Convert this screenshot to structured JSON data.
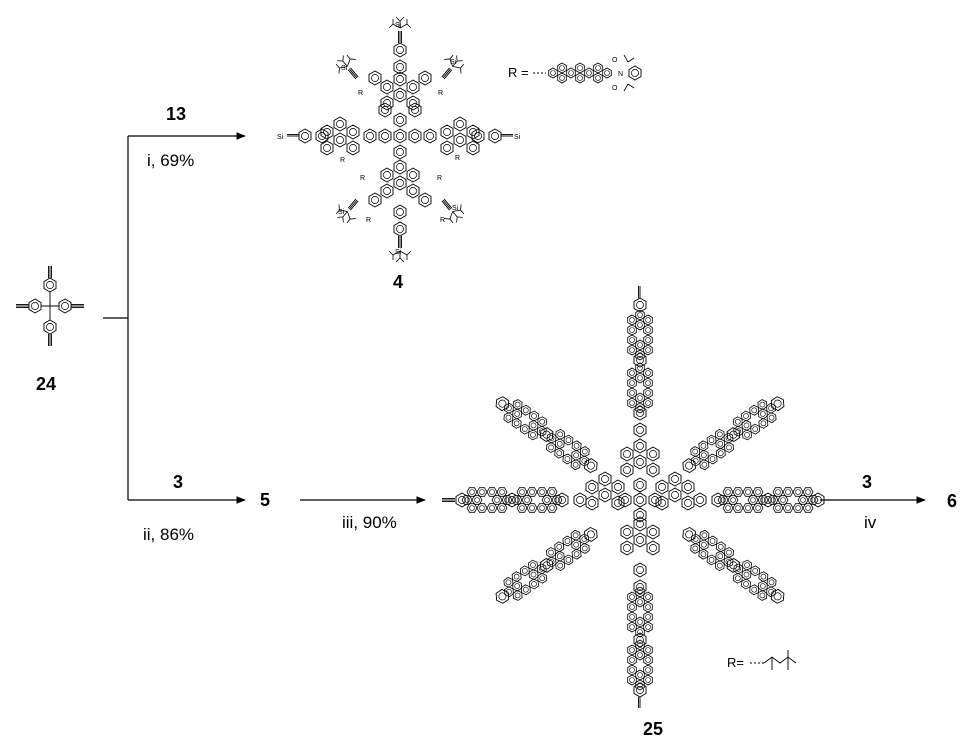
{
  "compounds": {
    "c24": "24",
    "c13": "13",
    "c4": "4",
    "c3a": "3",
    "c5": "5",
    "c25": "25",
    "c3b": "3",
    "c6": "6"
  },
  "conditions": {
    "i": "i, 69%",
    "ii": "ii, 86%",
    "iii": "iii, 90%",
    "iv": "iv"
  },
  "substituents": {
    "r_top": "R =",
    "r_bottom": "R=",
    "si": "Si",
    "r_small": "R",
    "n": "N",
    "o": "O"
  }
}
